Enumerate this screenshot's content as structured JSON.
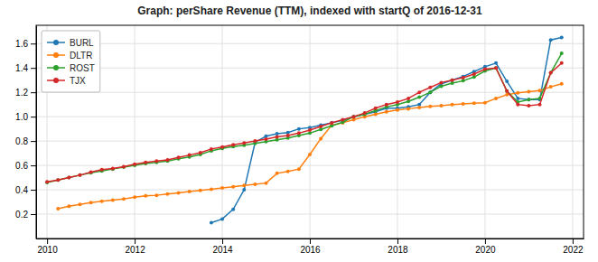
{
  "chart_data": {
    "type": "line",
    "title": "Graph: perShare Revenue (TTM), indexed with startQ of 2016-12-31",
    "series": [
      {
        "name": "BURL",
        "color": "#1f77b4",
        "x": [
          2013.75,
          2014.0,
          2014.25,
          2014.5,
          2014.75,
          2015.0,
          2015.25,
          2015.5,
          2015.75,
          2016.0,
          2016.25,
          2016.5,
          2016.75,
          2017.0,
          2017.25,
          2017.5,
          2017.75,
          2018.0,
          2018.25,
          2018.5,
          2018.75,
          2019.0,
          2019.25,
          2019.5,
          2019.75,
          2020.0,
          2020.25,
          2020.5,
          2020.75,
          2021.0,
          2021.25,
          2021.5,
          2021.75
        ],
        "values": [
          0.13,
          0.16,
          0.24,
          0.4,
          0.79,
          0.84,
          0.86,
          0.87,
          0.9,
          0.91,
          0.93,
          0.95,
          0.97,
          1.0,
          1.02,
          1.04,
          1.07,
          1.07,
          1.08,
          1.1,
          1.2,
          1.27,
          1.3,
          1.33,
          1.37,
          1.41,
          1.44,
          1.29,
          1.15,
          1.14,
          1.14,
          1.63,
          1.65
        ]
      },
      {
        "name": "DLTR",
        "color": "#ff7f0e",
        "x": [
          2010.25,
          2010.5,
          2010.75,
          2011.0,
          2011.25,
          2011.5,
          2011.75,
          2012.0,
          2012.25,
          2012.5,
          2012.75,
          2013.0,
          2013.25,
          2013.5,
          2013.75,
          2014.0,
          2014.25,
          2014.5,
          2014.75,
          2015.0,
          2015.25,
          2015.5,
          2015.75,
          2016.0,
          2016.25,
          2016.5,
          2016.75,
          2017.0,
          2017.25,
          2017.5,
          2017.75,
          2018.0,
          2018.25,
          2018.5,
          2018.75,
          2019.0,
          2019.25,
          2019.5,
          2019.75,
          2020.0,
          2020.25,
          2020.5,
          2020.75,
          2021.0,
          2021.25,
          2021.5,
          2021.75
        ],
        "values": [
          0.245,
          0.265,
          0.28,
          0.295,
          0.305,
          0.315,
          0.325,
          0.34,
          0.35,
          0.355,
          0.365,
          0.375,
          0.385,
          0.395,
          0.405,
          0.415,
          0.425,
          0.435,
          0.445,
          0.455,
          0.535,
          0.55,
          0.57,
          0.69,
          0.82,
          0.93,
          0.95,
          0.975,
          1.0,
          1.02,
          1.04,
          1.055,
          1.065,
          1.075,
          1.085,
          1.09,
          1.1,
          1.105,
          1.11,
          1.115,
          1.15,
          1.18,
          1.195,
          1.205,
          1.215,
          1.245,
          1.27
        ]
      },
      {
        "name": "ROST",
        "color": "#2ca02c",
        "x": [
          2010.0,
          2010.25,
          2010.5,
          2010.75,
          2011.0,
          2011.25,
          2011.5,
          2011.75,
          2012.0,
          2012.25,
          2012.5,
          2012.75,
          2013.0,
          2013.25,
          2013.5,
          2013.75,
          2014.0,
          2014.25,
          2014.5,
          2014.75,
          2015.0,
          2015.25,
          2015.5,
          2015.75,
          2016.0,
          2016.25,
          2016.5,
          2016.75,
          2017.0,
          2017.25,
          2017.5,
          2017.75,
          2018.0,
          2018.25,
          2018.5,
          2018.75,
          2019.0,
          2019.25,
          2019.5,
          2019.75,
          2020.0,
          2020.25,
          2020.5,
          2020.75,
          2021.0,
          2021.25,
          2021.5,
          2021.75
        ],
        "values": [
          0.46,
          0.48,
          0.5,
          0.52,
          0.54,
          0.555,
          0.57,
          0.585,
          0.6,
          0.615,
          0.625,
          0.635,
          0.655,
          0.67,
          0.69,
          0.72,
          0.74,
          0.755,
          0.765,
          0.78,
          0.795,
          0.81,
          0.825,
          0.845,
          0.865,
          0.895,
          0.925,
          0.955,
          1.0,
          1.02,
          1.05,
          1.08,
          1.1,
          1.125,
          1.16,
          1.2,
          1.25,
          1.275,
          1.295,
          1.325,
          1.375,
          1.4,
          1.21,
          1.12,
          1.14,
          1.15,
          1.36,
          1.52
        ]
      },
      {
        "name": "TJX",
        "color": "#d62728",
        "x": [
          2010.0,
          2010.25,
          2010.5,
          2010.75,
          2011.0,
          2011.25,
          2011.5,
          2011.75,
          2012.0,
          2012.25,
          2012.5,
          2012.75,
          2013.0,
          2013.25,
          2013.5,
          2013.75,
          2014.0,
          2014.25,
          2014.5,
          2014.75,
          2015.0,
          2015.25,
          2015.5,
          2015.75,
          2016.0,
          2016.25,
          2016.5,
          2016.75,
          2017.0,
          2017.25,
          2017.5,
          2017.75,
          2018.0,
          2018.25,
          2018.5,
          2018.75,
          2019.0,
          2019.25,
          2019.5,
          2019.75,
          2020.0,
          2020.25,
          2020.5,
          2020.75,
          2021.0,
          2021.25,
          2021.5,
          2021.75
        ],
        "values": [
          0.465,
          0.48,
          0.5,
          0.52,
          0.545,
          0.565,
          0.575,
          0.59,
          0.61,
          0.625,
          0.635,
          0.645,
          0.665,
          0.685,
          0.705,
          0.735,
          0.75,
          0.77,
          0.785,
          0.8,
          0.815,
          0.835,
          0.845,
          0.865,
          0.89,
          0.92,
          0.95,
          0.975,
          1.0,
          1.03,
          1.07,
          1.1,
          1.12,
          1.15,
          1.2,
          1.24,
          1.28,
          1.3,
          1.32,
          1.35,
          1.39,
          1.4,
          1.21,
          1.1,
          1.09,
          1.1,
          1.36,
          1.44
        ]
      }
    ],
    "xlim": [
      2009.75,
      2022.25
    ],
    "ylim": [
      0.0,
      1.75
    ],
    "xticks": [
      2010,
      2012,
      2014,
      2016,
      2018,
      2020,
      2022
    ],
    "yticks": [
      0.2,
      0.4,
      0.6,
      0.8,
      {
        "value": 1.0,
        "label": "1.0"
      },
      1.2,
      1.4,
      1.6
    ],
    "grid": true,
    "legend": "upper left",
    "marker": "circle"
  }
}
